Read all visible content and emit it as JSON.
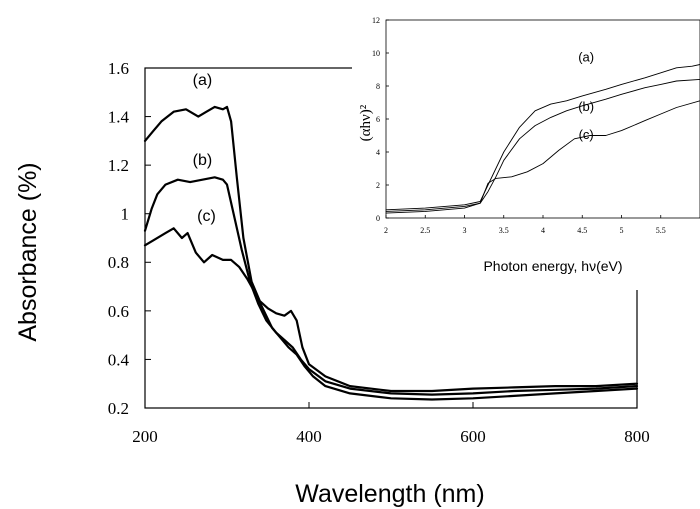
{
  "chart_data": [
    {
      "type": "line",
      "xlabel": "Wavelength (nm)",
      "ylabel": "Absorbance (%)",
      "xlim": [
        200,
        800
      ],
      "ylim": [
        0.2,
        1.6
      ],
      "x_ticks": [
        200,
        400,
        600,
        800
      ],
      "y_ticks": [
        0.2,
        0.4,
        0.6,
        0.8,
        1.0,
        1.2,
        1.4,
        1.6
      ],
      "x_tick_labels": [
        "200",
        "400",
        "600",
        "800"
      ],
      "y_tick_labels": [
        "0.2",
        "0.4",
        "0.6",
        "0.8",
        "1",
        "1.2",
        "1.4",
        "1.6"
      ],
      "grid": false,
      "series": [
        {
          "name": "(a)",
          "label_at": [
            270,
            1.53
          ],
          "points": [
            [
              200,
              1.3
            ],
            [
              210,
              1.34
            ],
            [
              220,
              1.38
            ],
            [
              235,
              1.42
            ],
            [
              250,
              1.43
            ],
            [
              265,
              1.4
            ],
            [
              275,
              1.42
            ],
            [
              285,
              1.44
            ],
            [
              295,
              1.43
            ],
            [
              300,
              1.44
            ],
            [
              305,
              1.38
            ],
            [
              312,
              1.15
            ],
            [
              320,
              0.9
            ],
            [
              330,
              0.72
            ],
            [
              340,
              0.64
            ],
            [
              350,
              0.61
            ],
            [
              360,
              0.59
            ],
            [
              370,
              0.58
            ],
            [
              378,
              0.6
            ],
            [
              385,
              0.56
            ],
            [
              392,
              0.45
            ],
            [
              400,
              0.38
            ],
            [
              420,
              0.33
            ],
            [
              450,
              0.29
            ],
            [
              500,
              0.27
            ],
            [
              550,
              0.27
            ],
            [
              600,
              0.28
            ],
            [
              650,
              0.285
            ],
            [
              700,
              0.29
            ],
            [
              750,
              0.29
            ],
            [
              800,
              0.3
            ]
          ]
        },
        {
          "name": "(b)",
          "label_at": [
            270,
            1.2
          ],
          "points": [
            [
              200,
              0.93
            ],
            [
              208,
              1.02
            ],
            [
              215,
              1.08
            ],
            [
              225,
              1.12
            ],
            [
              240,
              1.14
            ],
            [
              255,
              1.13
            ],
            [
              270,
              1.14
            ],
            [
              285,
              1.15
            ],
            [
              295,
              1.14
            ],
            [
              300,
              1.12
            ],
            [
              308,
              1.0
            ],
            [
              318,
              0.85
            ],
            [
              328,
              0.72
            ],
            [
              338,
              0.63
            ],
            [
              348,
              0.56
            ],
            [
              360,
              0.51
            ],
            [
              370,
              0.48
            ],
            [
              380,
              0.45
            ],
            [
              390,
              0.4
            ],
            [
              400,
              0.36
            ],
            [
              420,
              0.31
            ],
            [
              450,
              0.28
            ],
            [
              500,
              0.26
            ],
            [
              550,
              0.255
            ],
            [
              600,
              0.26
            ],
            [
              650,
              0.27
            ],
            [
              700,
              0.275
            ],
            [
              750,
              0.28
            ],
            [
              800,
              0.29
            ]
          ]
        },
        {
          "name": "(c)",
          "label_at": [
            275,
            0.97
          ],
          "points": [
            [
              200,
              0.87
            ],
            [
              210,
              0.89
            ],
            [
              225,
              0.92
            ],
            [
              235,
              0.94
            ],
            [
              245,
              0.9
            ],
            [
              252,
              0.92
            ],
            [
              262,
              0.84
            ],
            [
              272,
              0.8
            ],
            [
              282,
              0.83
            ],
            [
              295,
              0.81
            ],
            [
              305,
              0.81
            ],
            [
              315,
              0.78
            ],
            [
              325,
              0.73
            ],
            [
              335,
              0.67
            ],
            [
              345,
              0.6
            ],
            [
              355,
              0.53
            ],
            [
              365,
              0.49
            ],
            [
              375,
              0.45
            ],
            [
              385,
              0.42
            ],
            [
              395,
              0.37
            ],
            [
              405,
              0.33
            ],
            [
              420,
              0.29
            ],
            [
              450,
              0.26
            ],
            [
              500,
              0.24
            ],
            [
              550,
              0.235
            ],
            [
              600,
              0.24
            ],
            [
              650,
              0.25
            ],
            [
              700,
              0.26
            ],
            [
              750,
              0.27
            ],
            [
              800,
              0.28
            ]
          ]
        }
      ]
    },
    {
      "type": "line",
      "xlabel": "Photon energy, hν(eV)",
      "ylabel": "(αhν)²",
      "xlim": [
        2,
        6
      ],
      "ylim": [
        0,
        12
      ],
      "x_ticks": [
        2,
        2.5,
        3,
        3.5,
        4,
        4.5,
        5,
        5.5
      ],
      "y_ticks": [
        0,
        2,
        4,
        6,
        8,
        10,
        12
      ],
      "x_tick_labels": [
        "2",
        "2.5",
        "3",
        "3.5",
        "4",
        "4.5",
        "5",
        "5.5"
      ],
      "y_tick_labels": [
        "0",
        "2",
        "4",
        "6",
        "8",
        "10",
        "12"
      ],
      "grid": false,
      "series": [
        {
          "name": "(a)",
          "label_at": [
            4.55,
            9.5
          ],
          "points": [
            [
              2,
              0.5
            ],
            [
              2.5,
              0.6
            ],
            [
              3,
              0.8
            ],
            [
              3.2,
              1.0
            ],
            [
              3.3,
              2.0
            ],
            [
              3.4,
              3.0
            ],
            [
              3.5,
              4.0
            ],
            [
              3.7,
              5.5
            ],
            [
              3.9,
              6.5
            ],
            [
              4.1,
              6.9
            ],
            [
              4.3,
              7.1
            ],
            [
              4.5,
              7.4
            ],
            [
              4.8,
              7.8
            ],
            [
              5.0,
              8.1
            ],
            [
              5.3,
              8.5
            ],
            [
              5.5,
              8.8
            ],
            [
              5.7,
              9.1
            ],
            [
              5.9,
              9.2
            ],
            [
              6.0,
              9.3
            ]
          ]
        },
        {
          "name": "(b)",
          "label_at": [
            4.55,
            6.5
          ],
          "points": [
            [
              2,
              0.4
            ],
            [
              2.5,
              0.5
            ],
            [
              3,
              0.7
            ],
            [
              3.2,
              0.9
            ],
            [
              3.3,
              1.6
            ],
            [
              3.4,
              2.5
            ],
            [
              3.5,
              3.5
            ],
            [
              3.7,
              4.8
            ],
            [
              3.9,
              5.6
            ],
            [
              4.1,
              6.1
            ],
            [
              4.3,
              6.5
            ],
            [
              4.5,
              6.8
            ],
            [
              4.8,
              7.2
            ],
            [
              5.0,
              7.5
            ],
            [
              5.3,
              7.9
            ],
            [
              5.5,
              8.1
            ],
            [
              5.7,
              8.3
            ],
            [
              6.0,
              8.4
            ]
          ]
        },
        {
          "name": "(c)",
          "label_at": [
            4.55,
            4.8
          ],
          "points": [
            [
              2,
              0.3
            ],
            [
              2.5,
              0.4
            ],
            [
              3,
              0.6
            ],
            [
              3.2,
              0.9
            ],
            [
              3.3,
              2.1
            ],
            [
              3.4,
              2.4
            ],
            [
              3.6,
              2.5
            ],
            [
              3.8,
              2.8
            ],
            [
              4.0,
              3.3
            ],
            [
              4.2,
              4.1
            ],
            [
              4.4,
              4.8
            ],
            [
              4.6,
              5.0
            ],
            [
              4.8,
              5.0
            ],
            [
              5.0,
              5.3
            ],
            [
              5.3,
              5.9
            ],
            [
              5.5,
              6.3
            ],
            [
              5.7,
              6.7
            ],
            [
              6.0,
              7.1
            ]
          ]
        }
      ]
    }
  ]
}
